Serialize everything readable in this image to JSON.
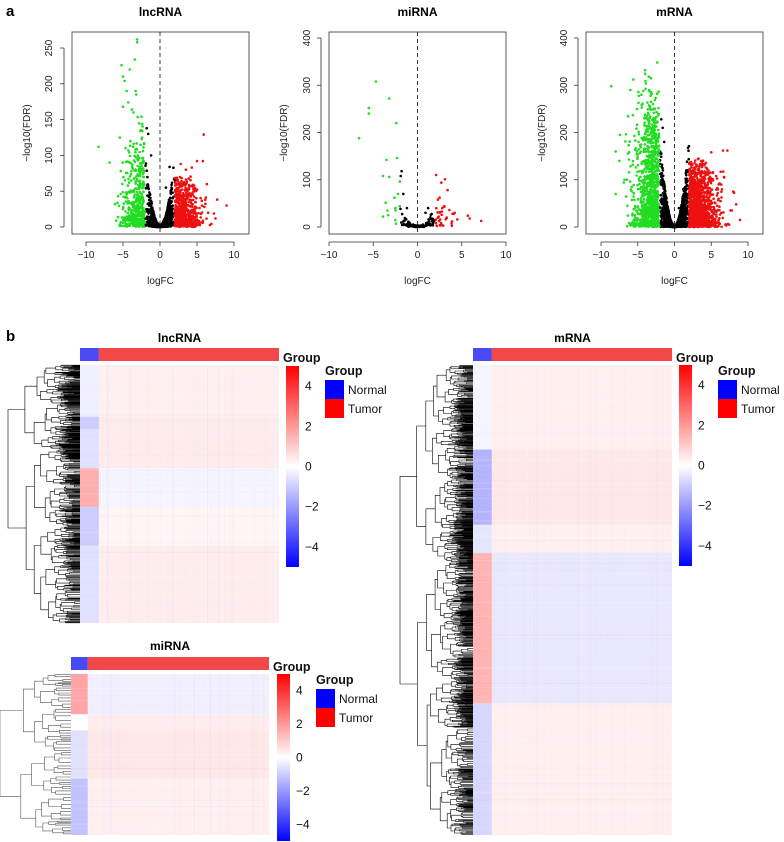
{
  "panel_labels": {
    "a": "a",
    "b": "b"
  },
  "colors": {
    "up": "#ee1111",
    "down": "#22dd22",
    "ns": "#000000",
    "normal": "#0000ff",
    "tumor": "#ff0000",
    "heat_low": "#0000ff",
    "heat_mid": "#ffffff",
    "heat_high": "#ff0000"
  },
  "chart_data": [
    {
      "type": "scatter",
      "id": "volcano-lncrna",
      "title": "lncRNA",
      "xlabel": "logFC",
      "ylabel": "−log10(FDR)",
      "xlim": [
        -12,
        12
      ],
      "ylim": [
        -10,
        275
      ],
      "xticks": [
        -10,
        -5,
        0,
        5,
        10
      ],
      "yticks": [
        0,
        50,
        100,
        150,
        200,
        250
      ],
      "xtick_labels": [
        "−10",
        "−5",
        "0",
        "5",
        "10"
      ],
      "ytick_labels": [
        "0",
        "50",
        "100",
        "150",
        "200",
        "250"
      ],
      "threshold_logfc": 2,
      "vline": 0,
      "series": [
        {
          "name": "down",
          "color": "#22dd22",
          "points": [
            [
              -3.1,
              262
            ],
            [
              -3.1,
              258
            ],
            [
              -3.4,
              234
            ],
            [
              -5.2,
              226
            ],
            [
              -4.1,
              220
            ],
            [
              -5.0,
              210
            ],
            [
              -4.8,
              204
            ],
            [
              -4.5,
              190
            ],
            [
              -3.3,
              190
            ],
            [
              -3.2,
              185
            ],
            [
              -4.3,
              174
            ],
            [
              -5.0,
              168
            ],
            [
              -3.8,
              164
            ],
            [
              -3.6,
              160
            ],
            [
              -2.5,
              154
            ],
            [
              -8.3,
              112
            ],
            [
              -6.8,
              90
            ],
            [
              -4.0,
              120
            ],
            [
              -3.0,
              100
            ],
            [
              -2.8,
              80
            ],
            [
              -5.1,
              60
            ],
            [
              -4.6,
              42
            ]
          ]
        },
        {
          "name": "up",
          "color": "#ee1111",
          "points": [
            [
              5.9,
              129
            ],
            [
              5.0,
              92
            ],
            [
              5.8,
              92
            ],
            [
              2.8,
              88
            ],
            [
              4.3,
              83
            ],
            [
              3.5,
              80
            ],
            [
              9.0,
              30
            ],
            [
              7.5,
              12
            ],
            [
              6.5,
              20
            ],
            [
              4.0,
              45
            ],
            [
              3.0,
              60
            ]
          ]
        },
        {
          "name": "not significant",
          "color": "#000000",
          "points": [
            [
              -1.8,
              138
            ],
            [
              -1.6,
              130
            ],
            [
              1.3,
              84
            ],
            [
              -1.2,
              100
            ],
            [
              0.8,
              55
            ]
          ]
        }
      ]
    },
    {
      "type": "scatter",
      "id": "volcano-mirna",
      "title": "miRNA",
      "xlabel": "logFC",
      "ylabel": "−log10(FDR)",
      "xlim": [
        -10,
        10
      ],
      "ylim": [
        -15,
        415
      ],
      "xticks": [
        -10,
        -5,
        0,
        5,
        10
      ],
      "yticks": [
        0,
        100,
        200,
        300,
        400
      ],
      "xtick_labels": [
        "−10",
        "−5",
        "0",
        "5",
        "10"
      ],
      "ytick_labels": [
        "0",
        "100",
        "200",
        "300",
        "400"
      ],
      "threshold_logfc": 2,
      "vline": 0,
      "series": [
        {
          "name": "down",
          "color": "#22dd22",
          "points": [
            [
              -4.7,
              308
            ],
            [
              -3.2,
              272
            ],
            [
              -5.5,
              252
            ],
            [
              -5.5,
              240
            ],
            [
              -2.4,
              220
            ],
            [
              -6.6,
              188
            ],
            [
              -2.3,
              146
            ],
            [
              -3.5,
              142
            ],
            [
              -3.9,
              108
            ],
            [
              -3.2,
              106
            ],
            [
              -2.0,
              96
            ],
            [
              -2.2,
              70
            ],
            [
              -2.6,
              62
            ],
            [
              -2.0,
              44
            ],
            [
              -2.5,
              40
            ],
            [
              -3.9,
              22
            ]
          ]
        },
        {
          "name": "up",
          "color": "#ee1111",
          "points": [
            [
              2.1,
              110
            ],
            [
              3.1,
              101
            ],
            [
              2.7,
              94
            ],
            [
              3.4,
              78
            ],
            [
              2.5,
              62
            ],
            [
              2.3,
              58
            ],
            [
              3.0,
              44
            ],
            [
              2.8,
              40
            ],
            [
              3.6,
              36
            ],
            [
              4.2,
              30
            ],
            [
              4.1,
              28
            ],
            [
              5.7,
              24
            ],
            [
              5.9,
              18
            ],
            [
              7.2,
              13
            ],
            [
              4.5,
              16
            ],
            [
              2.4,
              22
            ],
            [
              3.3,
              20
            ]
          ]
        },
        {
          "name": "not significant",
          "color": "#000000",
          "points": [
            [
              -1.8,
              118
            ],
            [
              -1.9,
              108
            ],
            [
              -1.6,
              70
            ],
            [
              -1.2,
              40
            ],
            [
              1.2,
              40
            ],
            [
              0.9,
              30
            ],
            [
              1.5,
              26
            ]
          ]
        }
      ]
    },
    {
      "type": "scatter",
      "id": "volcano-mrna",
      "title": "mRNA",
      "xlabel": "logFC",
      "ylabel": "−log10(FDR)",
      "xlim": [
        -12,
        12
      ],
      "ylim": [
        -15,
        415
      ],
      "xticks": [
        -10,
        -5,
        0,
        5,
        10
      ],
      "yticks": [
        0,
        100,
        200,
        300,
        400
      ],
      "xtick_labels": [
        "−10",
        "−5",
        "0",
        "5",
        "10"
      ],
      "ytick_labels": [
        "0",
        "100",
        "200",
        "300",
        "400"
      ],
      "threshold_logfc": 2,
      "vline": 0,
      "series": [
        {
          "name": "down",
          "color": "#22dd22",
          "points": [
            [
              -3.5,
              318
            ],
            [
              -3.2,
              315
            ],
            [
              -5.6,
              312
            ],
            [
              -8.6,
              298
            ],
            [
              -6.0,
              290
            ],
            [
              -4.5,
              280
            ],
            [
              -7.4,
              195
            ],
            [
              -8.0,
              160
            ],
            [
              -7.5,
              140
            ],
            [
              -6.8,
              100
            ],
            [
              -8.0,
              70
            ],
            [
              -5.0,
              80
            ]
          ]
        },
        {
          "name": "up",
          "color": "#ee1111",
          "points": [
            [
              5.0,
              158
            ],
            [
              6.6,
              162
            ],
            [
              7.2,
              162
            ],
            [
              3.8,
              135
            ],
            [
              4.5,
              120
            ],
            [
              8.0,
              75
            ],
            [
              8.4,
              48
            ],
            [
              8.9,
              15
            ],
            [
              7.8,
              35
            ],
            [
              6.0,
              60
            ]
          ]
        },
        {
          "name": "not significant",
          "color": "#000000",
          "points": [
            [
              -1.8,
              228
            ],
            [
              -1.6,
              210
            ],
            [
              -1.4,
              180
            ],
            [
              1.2,
              80
            ],
            [
              0.6,
              40
            ]
          ]
        }
      ]
    },
    {
      "type": "heatmap",
      "id": "heatmap-lncrna",
      "title": "lncRNA",
      "annotation_label": "Group",
      "groups": [
        "Normal",
        "Tumor"
      ],
      "normal_fraction": 0.095,
      "colorbar": {
        "min": -5,
        "max": 5,
        "ticks": [
          4,
          2,
          0,
          -2,
          -4
        ],
        "tick_labels": [
          "4",
          "2",
          "0",
          "−2",
          "−4"
        ]
      },
      "legend": {
        "title": "Group",
        "items": [
          {
            "label": "Normal",
            "color": "#0000ff"
          },
          {
            "label": "Tumor",
            "color": "#ff0000"
          }
        ]
      },
      "row_blocks": [
        {
          "rows": [
            0,
            0.2
          ],
          "normal": -0.3,
          "tumor": 0.3
        },
        {
          "rows": [
            0.2,
            0.25
          ],
          "normal": -1.0,
          "tumor": 0.4
        },
        {
          "rows": [
            0.25,
            0.4
          ],
          "normal": -0.6,
          "tumor": 0.4
        },
        {
          "rows": [
            0.4,
            0.55
          ],
          "normal": 1.6,
          "tumor": -0.2
        },
        {
          "rows": [
            0.55,
            0.7
          ],
          "normal": -1.0,
          "tumor": 0.2
        },
        {
          "rows": [
            0.7,
            1.0
          ],
          "normal": -0.6,
          "tumor": 0.35
        }
      ],
      "dendrogram_depth": 9
    },
    {
      "type": "heatmap",
      "id": "heatmap-mirna",
      "title": "miRNA",
      "annotation_label": "Group",
      "groups": [
        "Normal",
        "Tumor"
      ],
      "normal_fraction": 0.085,
      "colorbar": {
        "min": -5,
        "max": 5,
        "ticks": [
          4,
          2,
          0,
          -2,
          -4
        ],
        "tick_labels": [
          "4",
          "2",
          "0",
          "−2",
          "−4"
        ]
      },
      "legend": {
        "title": "Group",
        "items": [
          {
            "label": "Normal",
            "color": "#0000ff"
          },
          {
            "label": "Tumor",
            "color": "#ff0000"
          }
        ]
      },
      "row_blocks": [
        {
          "rows": [
            0,
            0.25
          ],
          "normal": 1.8,
          "tumor": -0.3
        },
        {
          "rows": [
            0.25,
            0.35
          ],
          "normal": 0.0,
          "tumor": 0.35
        },
        {
          "rows": [
            0.35,
            0.65
          ],
          "normal": -0.6,
          "tumor": 0.45
        },
        {
          "rows": [
            0.65,
            1.0
          ],
          "normal": -1.2,
          "tumor": 0.3
        }
      ],
      "dendrogram_depth": 6
    },
    {
      "type": "heatmap",
      "id": "heatmap-mrna",
      "title": "mRNA",
      "annotation_label": "Group",
      "groups": [
        "Normal",
        "Tumor"
      ],
      "normal_fraction": 0.095,
      "colorbar": {
        "min": -5,
        "max": 5,
        "ticks": [
          4,
          2,
          0,
          -2,
          -4
        ],
        "tick_labels": [
          "4",
          "2",
          "0",
          "−2",
          "−4"
        ]
      },
      "legend": {
        "title": "Group",
        "items": [
          {
            "label": "Normal",
            "color": "#0000ff"
          },
          {
            "label": "Tumor",
            "color": "#ff0000"
          }
        ]
      },
      "row_blocks": [
        {
          "rows": [
            0,
            0.18
          ],
          "normal": -0.2,
          "tumor": 0.3
        },
        {
          "rows": [
            0.18,
            0.34
          ],
          "normal": -1.5,
          "tumor": 0.45
        },
        {
          "rows": [
            0.34,
            0.4
          ],
          "normal": -0.5,
          "tumor": 0.3
        },
        {
          "rows": [
            0.4,
            0.72
          ],
          "normal": 1.5,
          "tumor": -0.45
        },
        {
          "rows": [
            0.72,
            1.0
          ],
          "normal": -0.8,
          "tumor": 0.3
        }
      ],
      "dendrogram_depth": 10
    }
  ]
}
